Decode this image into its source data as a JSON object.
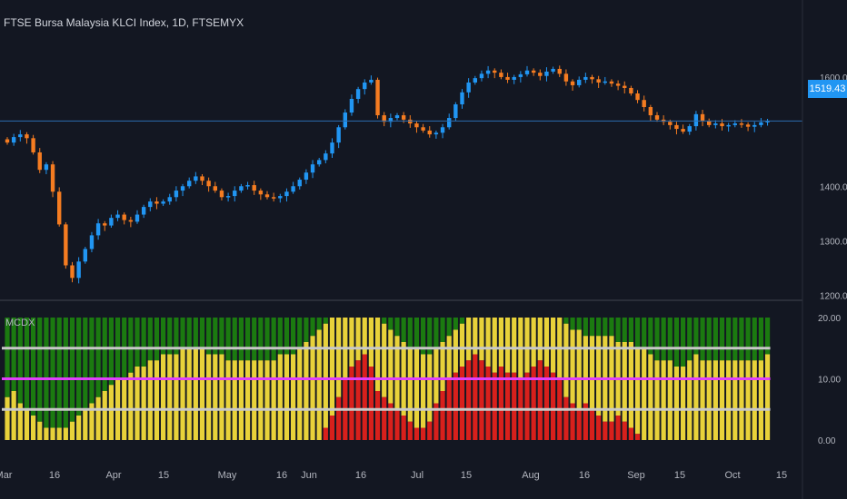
{
  "header": {
    "title": "FTSE Bursa Malaysia KLCI Index, 1D, FTSEMYX"
  },
  "indicator": {
    "label": "MCDX"
  },
  "current_price": {
    "label": "1519.43"
  },
  "colors": {
    "background": "#131722",
    "candle_up": "#2196f3",
    "candle_down": "#f57c21",
    "price_line": "#2b6cb0",
    "mcdx_green": "#1b7a10",
    "mcdx_yellow": "#e8d23a",
    "mcdx_red": "#d8201c",
    "upper_line": "#c8c8c8",
    "mid_line": "#e040fb",
    "lower_line": "#c8c8c8",
    "axis_text": "#b2b5be",
    "divider": "#2a2e39"
  },
  "chart_data": [
    {
      "type": "candlestick",
      "title": "FTSE Bursa Malaysia KLCI Index, 1D, FTSEMYX",
      "ylim": [
        1185,
        1645
      ],
      "y_ticks": [
        "1200.00",
        "1300.00",
        "1400.00",
        "1500.00",
        "1600.00"
      ],
      "x_ticks": [
        "Mar",
        "16",
        "Apr",
        "15",
        "May",
        "16",
        "Jun",
        "16",
        "Jul",
        "15",
        "Aug",
        "16",
        "Sep",
        "15",
        "Oct",
        "15"
      ],
      "current_value": 1519.43,
      "closes": [
        1480,
        1490,
        1495,
        1488,
        1462,
        1430,
        1440,
        1390,
        1330,
        1255,
        1232,
        1262,
        1285,
        1310,
        1332,
        1328,
        1342,
        1348,
        1338,
        1335,
        1348,
        1362,
        1372,
        1368,
        1372,
        1380,
        1392,
        1400,
        1410,
        1418,
        1410,
        1400,
        1392,
        1380,
        1382,
        1392,
        1400,
        1402,
        1392,
        1385,
        1380,
        1378,
        1382,
        1390,
        1400,
        1412,
        1425,
        1440,
        1448,
        1460,
        1480,
        1508,
        1535,
        1560,
        1578,
        1590,
        1595,
        1530,
        1518,
        1525,
        1530,
        1522,
        1515,
        1508,
        1502,
        1495,
        1498,
        1508,
        1525,
        1550,
        1572,
        1590,
        1598,
        1606,
        1612,
        1608,
        1600,
        1595,
        1600,
        1605,
        1612,
        1608,
        1602,
        1610,
        1615,
        1606,
        1592,
        1585,
        1595,
        1600,
        1596,
        1590,
        1592,
        1588,
        1584,
        1580,
        1570,
        1558,
        1545,
        1530,
        1522,
        1518,
        1512,
        1505,
        1500,
        1510,
        1532,
        1520,
        1512,
        1515,
        1510,
        1512,
        1515,
        1513,
        1509,
        1512,
        1517,
        1519.43
      ]
    },
    {
      "type": "bar",
      "title": "MCDX",
      "ylim": [
        0,
        20
      ],
      "y_ticks": [
        "0.00",
        "10.00",
        "20.00"
      ],
      "reference_lines": [
        15,
        10,
        5
      ],
      "total": [
        7,
        8,
        6,
        5,
        4,
        3,
        2,
        2,
        2,
        2,
        3,
        4,
        5,
        6,
        7,
        8,
        9,
        10,
        10,
        11,
        12,
        12,
        13,
        13,
        14,
        14,
        14,
        15,
        15,
        15,
        15,
        14,
        14,
        14,
        13,
        13,
        13,
        13,
        13,
        13,
        13,
        13,
        14,
        14,
        14,
        15,
        16,
        17,
        18,
        19,
        20,
        20,
        20,
        20,
        20,
        20,
        20,
        20,
        19,
        18,
        17,
        16,
        15,
        15,
        14,
        14,
        15,
        16,
        17,
        18,
        19,
        20,
        20,
        20,
        20,
        20,
        20,
        20,
        20,
        20,
        20,
        20,
        20,
        20,
        20,
        20,
        19,
        18,
        18,
        17,
        17,
        17,
        17,
        17,
        16,
        16,
        16,
        15,
        15,
        14,
        13,
        13,
        13,
        12,
        12,
        13,
        14,
        13,
        13,
        13,
        13,
        13,
        13,
        13,
        13,
        13,
        13,
        14
      ],
      "red": [
        0,
        0,
        0,
        0,
        0,
        0,
        0,
        0,
        0,
        0,
        0,
        0,
        0,
        0,
        0,
        0,
        0,
        0,
        0,
        0,
        0,
        0,
        0,
        0,
        0,
        0,
        0,
        0,
        0,
        0,
        0,
        0,
        0,
        0,
        0,
        0,
        0,
        0,
        0,
        0,
        0,
        0,
        0,
        0,
        0,
        0,
        0,
        0,
        0,
        2,
        4,
        7,
        10,
        12,
        13,
        14,
        12,
        8,
        7,
        6,
        5,
        4,
        3,
        2,
        2,
        3,
        6,
        8,
        10,
        11,
        12,
        13,
        14,
        13,
        12,
        11,
        12,
        11,
        11,
        10,
        11,
        12,
        13,
        12,
        11,
        10,
        7,
        6,
        5,
        6,
        5,
        4,
        3,
        3,
        4,
        3,
        2,
        1,
        0,
        0,
        0,
        0,
        0,
        0,
        0,
        0,
        0,
        0,
        0,
        0,
        0,
        0,
        0,
        0,
        0,
        0,
        0,
        0
      ]
    }
  ]
}
